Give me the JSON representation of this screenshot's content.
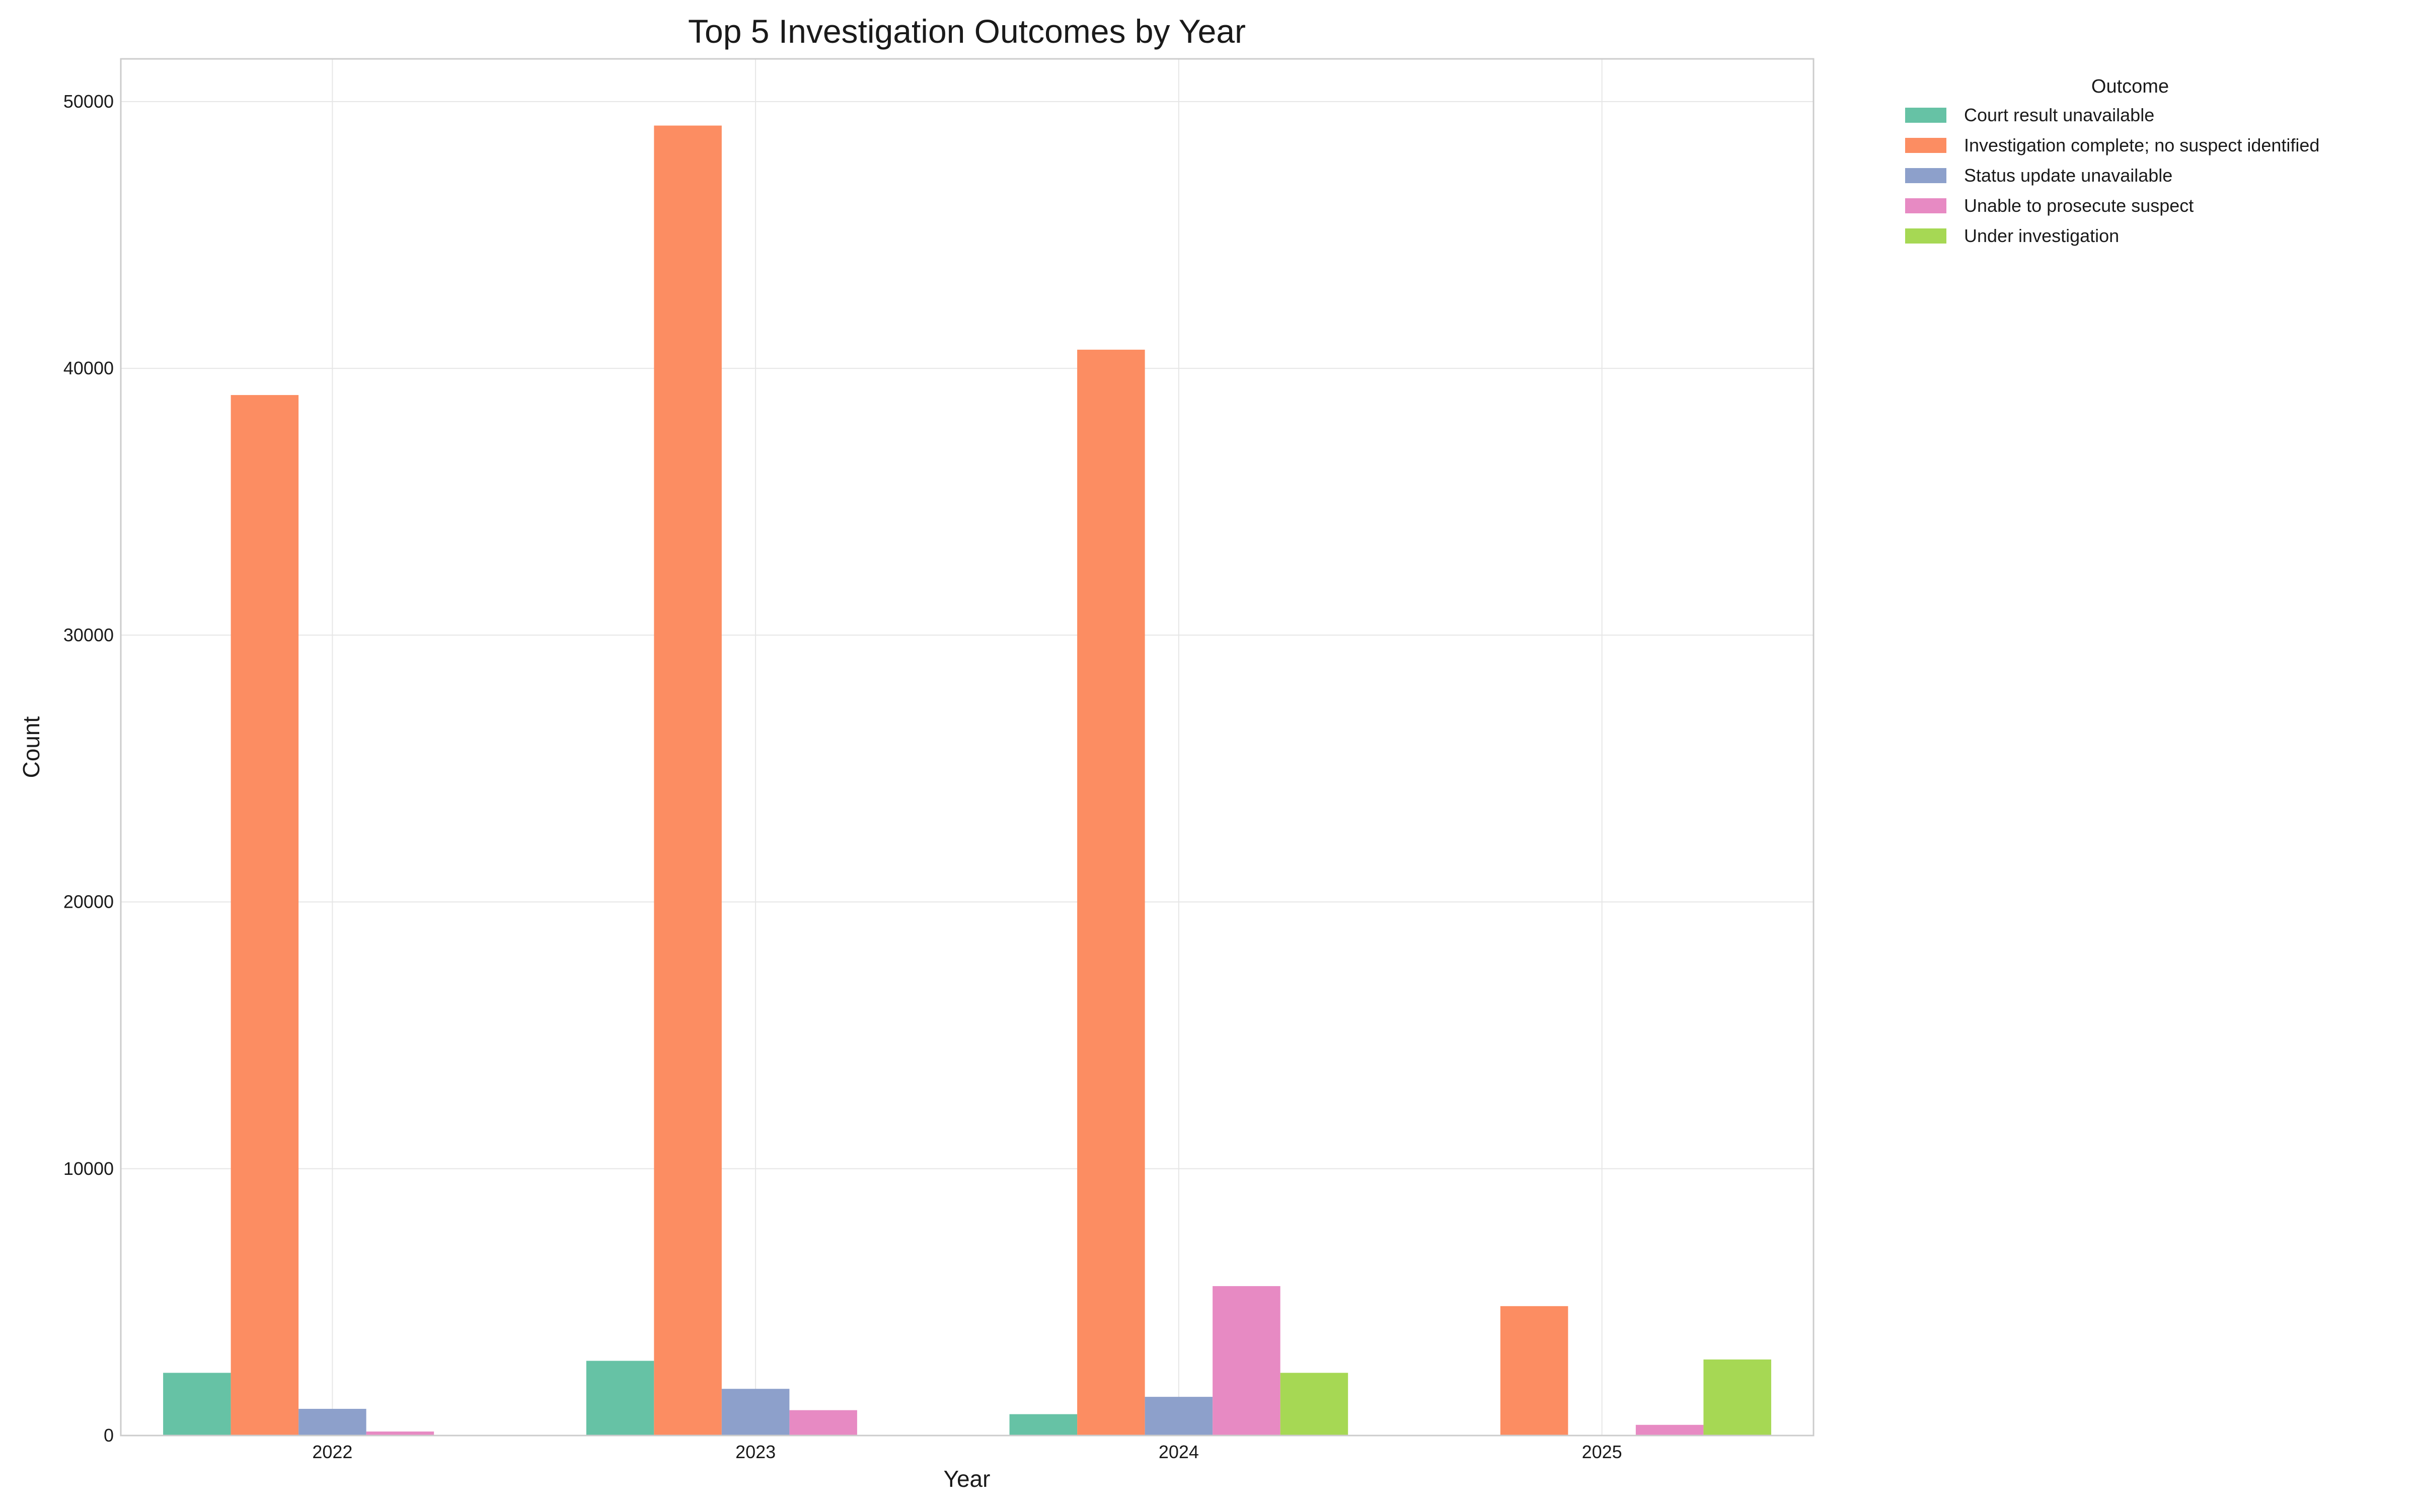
{
  "chart_data": {
    "type": "bar",
    "title": "Top 5 Investigation Outcomes by Year",
    "xlabel": "Year",
    "ylabel": "Count",
    "categories": [
      "2022",
      "2023",
      "2024",
      "2025"
    ],
    "ylim": [
      0,
      51600
    ],
    "yticks": [
      0,
      10000,
      20000,
      30000,
      40000,
      50000
    ],
    "grid": true,
    "legend": {
      "title": "Outcome",
      "placement": "outside-top-right"
    },
    "series": [
      {
        "name": "Court result unavailable",
        "color": "#66c2a5",
        "values": [
          2350,
          2800,
          800,
          0
        ]
      },
      {
        "name": "Investigation complete; no suspect identified",
        "color": "#fc8d62",
        "values": [
          39000,
          49100,
          40700,
          4850
        ]
      },
      {
        "name": "Status update unavailable",
        "color": "#8da0cb",
        "values": [
          1000,
          1750,
          1450,
          0
        ]
      },
      {
        "name": "Unable to prosecute suspect",
        "color": "#e78ac3",
        "values": [
          150,
          950,
          5600,
          400
        ]
      },
      {
        "name": "Under investigation",
        "color": "#a6d854",
        "values": [
          0,
          0,
          2350,
          2850
        ]
      }
    ]
  }
}
